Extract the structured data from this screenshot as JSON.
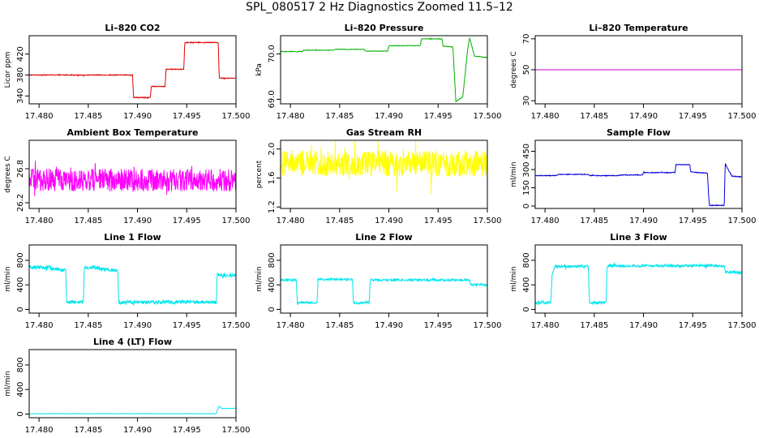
{
  "title": "SPL_080517  2 Hz Diagnostics Zoomed 11.5–12",
  "chart_data": [
    {
      "type": "line",
      "title": "Li–820 CO2",
      "xlabel": "",
      "ylabel": "Licor ppm",
      "xlim": [
        17.479,
        17.5
      ],
      "ylim": [
        325,
        455
      ],
      "xticks": [
        "17.480",
        "17.485",
        "17.490",
        "17.495",
        "17.500"
      ],
      "xtick_values": [
        17.48,
        17.485,
        17.49,
        17.495,
        17.5
      ],
      "yticks": [
        "340",
        "380",
        "420"
      ],
      "ytick_values": [
        340,
        380,
        420
      ],
      "color": "#e00000",
      "noise": 0.8,
      "series": [
        {
          "x": [
            17.479,
            17.4895,
            17.4896,
            17.4913,
            17.4914,
            17.4928,
            17.4929,
            17.4947,
            17.4948,
            17.4982,
            17.4983,
            17.49995
          ],
          "values": [
            380,
            380,
            337,
            337,
            358,
            358,
            391,
            391,
            442,
            442,
            374,
            374
          ]
        }
      ]
    },
    {
      "type": "line",
      "title": "Li–820 Pressure",
      "xlabel": "",
      "ylabel": "kPa",
      "xlim": [
        17.479,
        17.5
      ],
      "ylim": [
        68.9,
        70.4
      ],
      "xticks": [
        "17.480",
        "17.485",
        "17.490",
        "17.495",
        "17.500"
      ],
      "xtick_values": [
        17.48,
        17.485,
        17.49,
        17.495,
        17.5
      ],
      "yticks": [
        "69.0",
        "70.0"
      ],
      "ytick_values": [
        69.0,
        70.0
      ],
      "color": "#00b000",
      "noise": 0.006,
      "series": [
        {
          "x": [
            17.479,
            17.4812,
            17.4813,
            17.4844,
            17.4845,
            17.4875,
            17.4876,
            17.4899,
            17.49,
            17.4932,
            17.4933,
            17.4954,
            17.4955,
            17.4965,
            17.4968,
            17.497,
            17.4975,
            17.498,
            17.4982,
            17.4987,
            17.49995
          ],
          "values": [
            70.05,
            70.05,
            70.08,
            70.08,
            70.1,
            70.1,
            70.06,
            70.06,
            70.18,
            70.18,
            70.33,
            70.33,
            70.17,
            70.15,
            68.95,
            68.98,
            69.05,
            70.1,
            70.35,
            69.95,
            69.92
          ]
        }
      ]
    },
    {
      "type": "line",
      "title": "Li–820 Temperature",
      "xlabel": "",
      "ylabel": "degrees C",
      "xlim": [
        17.479,
        17.5
      ],
      "ylim": [
        28,
        72
      ],
      "xticks": [
        "17.480",
        "17.485",
        "17.490",
        "17.495",
        "17.500"
      ],
      "xtick_values": [
        17.48,
        17.485,
        17.49,
        17.495,
        17.5
      ],
      "yticks": [
        "30",
        "50",
        "70"
      ],
      "ytick_values": [
        30,
        50,
        70
      ],
      "color": "#cc00cc",
      "noise": 0,
      "series": [
        {
          "x": [
            17.479,
            17.49995
          ],
          "values": [
            50,
            50
          ]
        }
      ]
    },
    {
      "type": "line",
      "title": "Ambient Box Temperature",
      "xlabel": "",
      "ylabel": "degrees C",
      "xlim": [
        17.479,
        17.5
      ],
      "ylim": [
        26.1,
        27.3
      ],
      "xticks": [
        "17.480",
        "17.485",
        "17.490",
        "17.495",
        "17.500"
      ],
      "xtick_values": [
        17.48,
        17.485,
        17.49,
        17.495,
        17.5
      ],
      "yticks": [
        "26.2",
        "26.8"
      ],
      "ytick_values": [
        26.2,
        26.8
      ],
      "color": "#ff00ff",
      "noise": 0.2,
      "series": [
        {
          "x": [
            17.479,
            17.49995
          ],
          "values": [
            26.6,
            26.6
          ]
        }
      ]
    },
    {
      "type": "line",
      "title": "Gas Stream RH",
      "xlabel": "",
      "ylabel": "percent",
      "xlim": [
        17.479,
        17.5
      ],
      "ylim": [
        1.18,
        2.12
      ],
      "xticks": [
        "17.480",
        "17.485",
        "17.490",
        "17.495",
        "17.500"
      ],
      "xtick_values": [
        17.48,
        17.485,
        17.49,
        17.495,
        17.5
      ],
      "yticks": [
        "1.2",
        "1.6",
        "2.0"
      ],
      "ytick_values": [
        1.2,
        1.6,
        2.0
      ],
      "color": "#ffff00",
      "noise": 0.18,
      "series": [
        {
          "x": [
            17.479,
            17.49995
          ],
          "values": [
            1.8,
            1.8
          ]
        }
      ]
    },
    {
      "type": "line",
      "title": "Sample Flow",
      "xlabel": "",
      "ylabel": "ml/min",
      "xlim": [
        17.479,
        17.5
      ],
      "ylim": [
        -20,
        540
      ],
      "xticks": [
        "17.480",
        "17.485",
        "17.490",
        "17.495",
        "17.500"
      ],
      "xtick_values": [
        17.48,
        17.485,
        17.49,
        17.495,
        17.5
      ],
      "yticks": [
        "0",
        "150",
        "300",
        "450"
      ],
      "ytick_values": [
        0,
        150,
        300,
        450
      ],
      "color": "#0000dd",
      "noise": 3,
      "series": [
        {
          "x": [
            17.479,
            17.4812,
            17.4813,
            17.4844,
            17.4845,
            17.4875,
            17.4876,
            17.4899,
            17.49,
            17.4932,
            17.4933,
            17.4947,
            17.4948,
            17.4965,
            17.4966,
            17.4967,
            17.4982,
            17.4983,
            17.4986,
            17.499,
            17.49995
          ],
          "values": [
            250,
            250,
            260,
            260,
            250,
            250,
            255,
            255,
            275,
            275,
            340,
            340,
            280,
            270,
            100,
            5,
            5,
            350,
            300,
            245,
            240
          ]
        }
      ]
    },
    {
      "type": "line",
      "title": "Line 1 Flow",
      "xlabel": "",
      "ylabel": "ml/min",
      "xlim": [
        17.479,
        17.5
      ],
      "ylim": [
        -60,
        1050
      ],
      "xticks": [
        "17.480",
        "17.485",
        "17.490",
        "17.495",
        "17.500"
      ],
      "xtick_values": [
        17.48,
        17.485,
        17.49,
        17.495,
        17.5
      ],
      "yticks": [
        "0",
        "400",
        "800"
      ],
      "ytick_values": [
        0,
        400,
        800
      ],
      "color": "#00e5ee",
      "noise": 30,
      "series": [
        {
          "x": [
            17.479,
            17.4812,
            17.4813,
            17.4827,
            17.4828,
            17.4845,
            17.4846,
            17.4863,
            17.4864,
            17.488,
            17.4881,
            17.498,
            17.4981,
            17.49995
          ],
          "values": [
            690,
            680,
            660,
            640,
            120,
            120,
            690,
            670,
            650,
            640,
            115,
            120,
            550,
            560
          ]
        }
      ]
    },
    {
      "type": "line",
      "title": "Line 2 Flow",
      "xlabel": "",
      "ylabel": "ml/min",
      "xlim": [
        17.479,
        17.5
      ],
      "ylim": [
        -60,
        1050
      ],
      "xticks": [
        "17.480",
        "17.485",
        "17.490",
        "17.495",
        "17.500"
      ],
      "xtick_values": [
        17.48,
        17.485,
        17.49,
        17.495,
        17.5
      ],
      "yticks": [
        "0",
        "400",
        "800"
      ],
      "ytick_values": [
        0,
        400,
        800
      ],
      "color": "#00e5ee",
      "noise": 18,
      "series": [
        {
          "x": [
            17.479,
            17.4806,
            17.4807,
            17.4827,
            17.4828,
            17.4863,
            17.4864,
            17.488,
            17.4881,
            17.4982,
            17.4983,
            17.49995
          ],
          "values": [
            480,
            480,
            110,
            110,
            490,
            490,
            110,
            110,
            480,
            480,
            400,
            400
          ]
        }
      ]
    },
    {
      "type": "line",
      "title": "Line 3 Flow",
      "xlabel": "",
      "ylabel": "ml/min",
      "xlim": [
        17.479,
        17.5
      ],
      "ylim": [
        -60,
        1050
      ],
      "xticks": [
        "17.480",
        "17.485",
        "17.490",
        "17.495",
        "17.500"
      ],
      "xtick_values": [
        17.48,
        17.485,
        17.49,
        17.495,
        17.5
      ],
      "yticks": [
        "0",
        "400",
        "800"
      ],
      "ytick_values": [
        0,
        400,
        800
      ],
      "color": "#00e5ee",
      "noise": 22,
      "series": [
        {
          "x": [
            17.479,
            17.4806,
            17.4807,
            17.481,
            17.4844,
            17.4845,
            17.4862,
            17.4863,
            17.4982,
            17.4983,
            17.49995
          ],
          "values": [
            110,
            110,
            550,
            700,
            700,
            110,
            110,
            710,
            710,
            610,
            600
          ]
        }
      ]
    },
    {
      "type": "line",
      "title": "Line 4 (LT) Flow",
      "xlabel": "",
      "ylabel": "ml/min",
      "xlim": [
        17.479,
        17.5
      ],
      "ylim": [
        -60,
        1050
      ],
      "xticks": [
        "17.480",
        "17.485",
        "17.490",
        "17.495",
        "17.500"
      ],
      "xtick_values": [
        17.48,
        17.485,
        17.49,
        17.495,
        17.5
      ],
      "yticks": [
        "0",
        "400",
        "800"
      ],
      "ytick_values": [
        0,
        400,
        800
      ],
      "color": "#00e5ee",
      "noise": 2,
      "series": [
        {
          "x": [
            17.479,
            17.498,
            17.4981,
            17.4983,
            17.4986,
            17.49995
          ],
          "values": [
            5,
            5,
            60,
            130,
            90,
            95
          ]
        }
      ]
    }
  ]
}
